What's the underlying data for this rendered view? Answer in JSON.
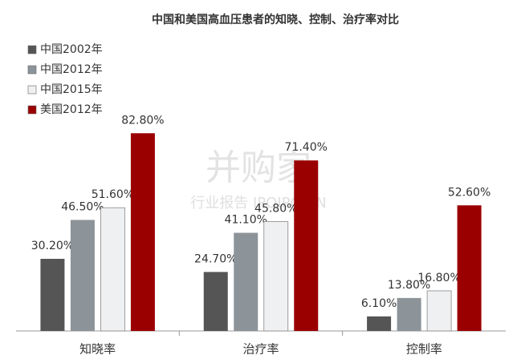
{
  "chart_data": {
    "type": "bar",
    "title": "中国和美国高血压患者的知晓、控制、治疗率对比",
    "categories": [
      "知晓率",
      "治疗率",
      "控制率"
    ],
    "series": [
      {
        "name": "中国2002年",
        "color": "#555555",
        "values": [
          30.2,
          24.7,
          6.1
        ],
        "value_labels": [
          "30.20%",
          "24.70%",
          "6.10%"
        ]
      },
      {
        "name": "中国2012年",
        "color": "#8c9399",
        "values": [
          46.5,
          41.1,
          13.8
        ],
        "value_labels": [
          "46.50%",
          "41.10%",
          "13.80%"
        ]
      },
      {
        "name": "中国2015年",
        "color": "#eef0f2",
        "values": [
          51.6,
          45.8,
          16.8
        ],
        "value_labels": [
          "51.60%",
          "45.80%",
          "16.80%"
        ]
      },
      {
        "name": "美国2012年",
        "color": "#9b0000",
        "values": [
          82.8,
          71.4,
          52.6
        ],
        "value_labels": [
          "82.80%",
          "71.40%",
          "52.60%"
        ]
      }
    ],
    "legend": "top-left",
    "watermark": [
      "并购家",
      "行业报告 IPOIPO.CN"
    ]
  }
}
